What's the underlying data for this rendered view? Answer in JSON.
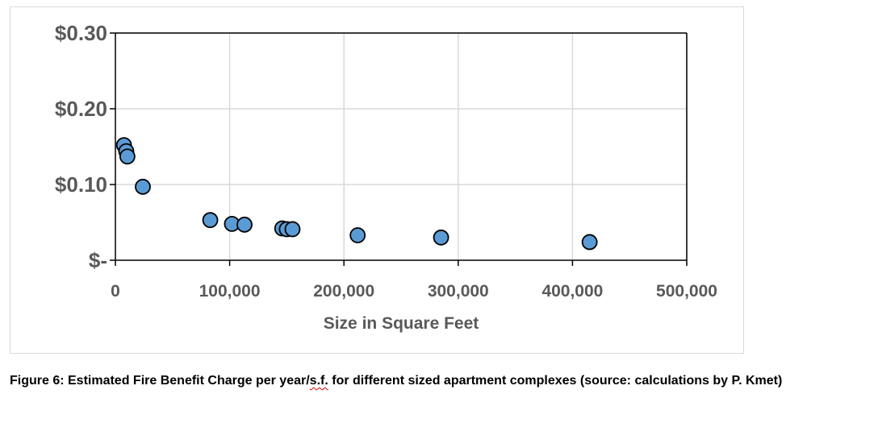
{
  "chart_data": {
    "type": "scatter",
    "xlabel": "Size in Square Feet",
    "ylabel": "",
    "xlim": [
      0,
      500000
    ],
    "ylim": [
      0,
      0.3
    ],
    "x_ticks": [
      0,
      100000,
      200000,
      300000,
      400000,
      500000
    ],
    "x_tick_labels": [
      "0",
      "100,000",
      "200,000",
      "300,000",
      "400,000",
      "500,000"
    ],
    "y_ticks": [
      0,
      0.1,
      0.2,
      0.3
    ],
    "y_tick_labels": [
      "$-",
      "$0.10",
      "$0.20",
      "$0.30"
    ],
    "grid": true,
    "marker_color": "#5b9bd5",
    "marker_edge": "#000000",
    "points": [
      {
        "x": 7500,
        "y": 0.152
      },
      {
        "x": 9500,
        "y": 0.144
      },
      {
        "x": 10500,
        "y": 0.137
      },
      {
        "x": 24000,
        "y": 0.097
      },
      {
        "x": 83000,
        "y": 0.053
      },
      {
        "x": 102000,
        "y": 0.048
      },
      {
        "x": 113000,
        "y": 0.047
      },
      {
        "x": 146000,
        "y": 0.042
      },
      {
        "x": 150000,
        "y": 0.041
      },
      {
        "x": 155000,
        "y": 0.041
      },
      {
        "x": 212000,
        "y": 0.033
      },
      {
        "x": 285000,
        "y": 0.03
      },
      {
        "x": 415000,
        "y": 0.024
      }
    ]
  },
  "caption": {
    "part1": "Figure 6: Estimated Fire Benefit Charge per year/",
    "flagged": "s.f.",
    "part2": " for different sized apartment complexes (source: calculations by P. Kmet)"
  }
}
